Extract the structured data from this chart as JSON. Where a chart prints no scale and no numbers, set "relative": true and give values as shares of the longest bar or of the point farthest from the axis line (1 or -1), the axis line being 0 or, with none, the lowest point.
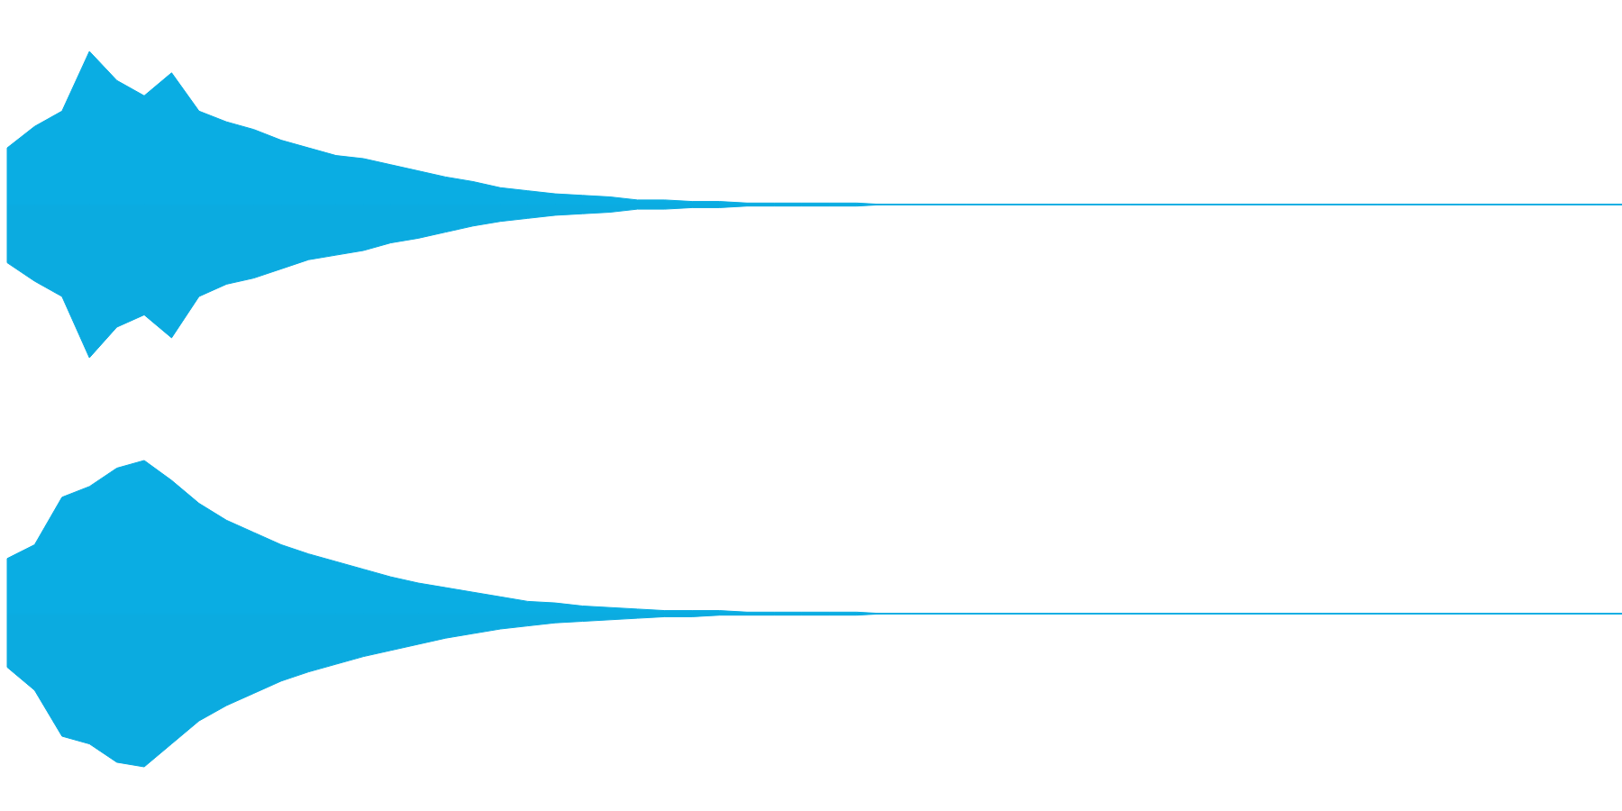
{
  "chart_data": [
    {
      "type": "area",
      "relative": true,
      "ref_lines": [
        {
          "axis": "y",
          "value": 0,
          "color": "#0aade3"
        }
      ],
      "categories": [
        null,
        null,
        null,
        null,
        null,
        null,
        null,
        null,
        null,
        null,
        null,
        null,
        null,
        null,
        null,
        null,
        null,
        null,
        null,
        null,
        null,
        null,
        null,
        null,
        null,
        null,
        null,
        null,
        null,
        null,
        null,
        null,
        null,
        null,
        null,
        null,
        null,
        null,
        null,
        null,
        null,
        null,
        null,
        null,
        null,
        null,
        null,
        null,
        null,
        null,
        null,
        null,
        null,
        null,
        null,
        null,
        null,
        null,
        null,
        null
      ],
      "series": [
        {
          "color": "#0aade3",
          "values": [
            0.37,
            0.51,
            0.61,
            1,
            0.81,
            0.71,
            0.86,
            0.61,
            0.54,
            0.49,
            0.42,
            0.37,
            0.32,
            0.3,
            0.26,
            0.22,
            0.18,
            0.15,
            0.11,
            0.09,
            0.07,
            0.06,
            0.05,
            0.03,
            0.03,
            0.02,
            0.02,
            0.01,
            0.01,
            0.01,
            0.01,
            0.01,
            0,
            0,
            0,
            0,
            0,
            0,
            0,
            0,
            0,
            0,
            0,
            0,
            0,
            0,
            0,
            0,
            0,
            0,
            0,
            0,
            0,
            0,
            0,
            0,
            0,
            0,
            0,
            0
          ]
        },
        {
          "color": "#0babe0",
          "values": [
            -0.38,
            -0.5,
            -0.6,
            -1,
            -0.8,
            -0.72,
            -0.87,
            -0.6,
            -0.52,
            -0.48,
            -0.42,
            -0.36,
            -0.33,
            -0.3,
            -0.25,
            -0.22,
            -0.18,
            -0.14,
            -0.11,
            -0.09,
            -0.07,
            -0.06,
            -0.05,
            -0.03,
            -0.03,
            -0.02,
            -0.02,
            -0.01,
            -0.01,
            -0.01,
            -0.01,
            -0.01,
            0,
            0,
            0,
            0,
            0,
            0,
            0,
            0,
            0,
            0,
            0,
            0,
            0,
            0,
            0,
            0,
            0,
            0,
            0,
            0,
            0,
            0,
            0,
            0,
            0,
            0,
            0,
            0
          ]
        }
      ]
    },
    {
      "type": "area",
      "relative": true,
      "ref_lines": [
        {
          "axis": "y",
          "value": 0,
          "color": "#0aade3"
        }
      ],
      "categories": [
        null,
        null,
        null,
        null,
        null,
        null,
        null,
        null,
        null,
        null,
        null,
        null,
        null,
        null,
        null,
        null,
        null,
        null,
        null,
        null,
        null,
        null,
        null,
        null,
        null,
        null,
        null,
        null,
        null,
        null,
        null,
        null,
        null,
        null,
        null,
        null,
        null,
        null,
        null,
        null,
        null,
        null,
        null,
        null,
        null,
        null,
        null,
        null,
        null,
        null,
        null,
        null,
        null,
        null,
        null,
        null,
        null,
        null,
        null,
        null
      ],
      "series": [
        {
          "color": "#0aade3",
          "values": [
            0.36,
            0.45,
            0.76,
            0.83,
            0.95,
            1,
            0.87,
            0.72,
            0.61,
            0.53,
            0.45,
            0.39,
            0.34,
            0.29,
            0.24,
            0.2,
            0.17,
            0.14,
            0.11,
            0.08,
            0.07,
            0.05,
            0.04,
            0.03,
            0.02,
            0.02,
            0.02,
            0.01,
            0.01,
            0.01,
            0.01,
            0.01,
            0,
            0,
            0,
            0,
            0,
            0,
            0,
            0,
            0,
            0,
            0,
            0,
            0,
            0,
            0,
            0,
            0,
            0,
            0,
            0,
            0,
            0,
            0,
            0,
            0,
            0,
            0,
            0
          ]
        },
        {
          "color": "#0babe0",
          "values": [
            -0.35,
            -0.5,
            -0.8,
            -0.85,
            -0.97,
            -1,
            -0.85,
            -0.7,
            -0.6,
            -0.52,
            -0.44,
            -0.38,
            -0.33,
            -0.28,
            -0.24,
            -0.2,
            -0.16,
            -0.13,
            -0.1,
            -0.08,
            -0.06,
            -0.05,
            -0.04,
            -0.03,
            -0.02,
            -0.02,
            -0.01,
            -0.01,
            -0.01,
            -0.01,
            -0.01,
            -0.01,
            0,
            0,
            0,
            0,
            0,
            0,
            0,
            0,
            0,
            0,
            0,
            0,
            0,
            0,
            0,
            0,
            0,
            0,
            0,
            0,
            0,
            0,
            0,
            0,
            0,
            0,
            0,
            0
          ]
        }
      ]
    }
  ]
}
